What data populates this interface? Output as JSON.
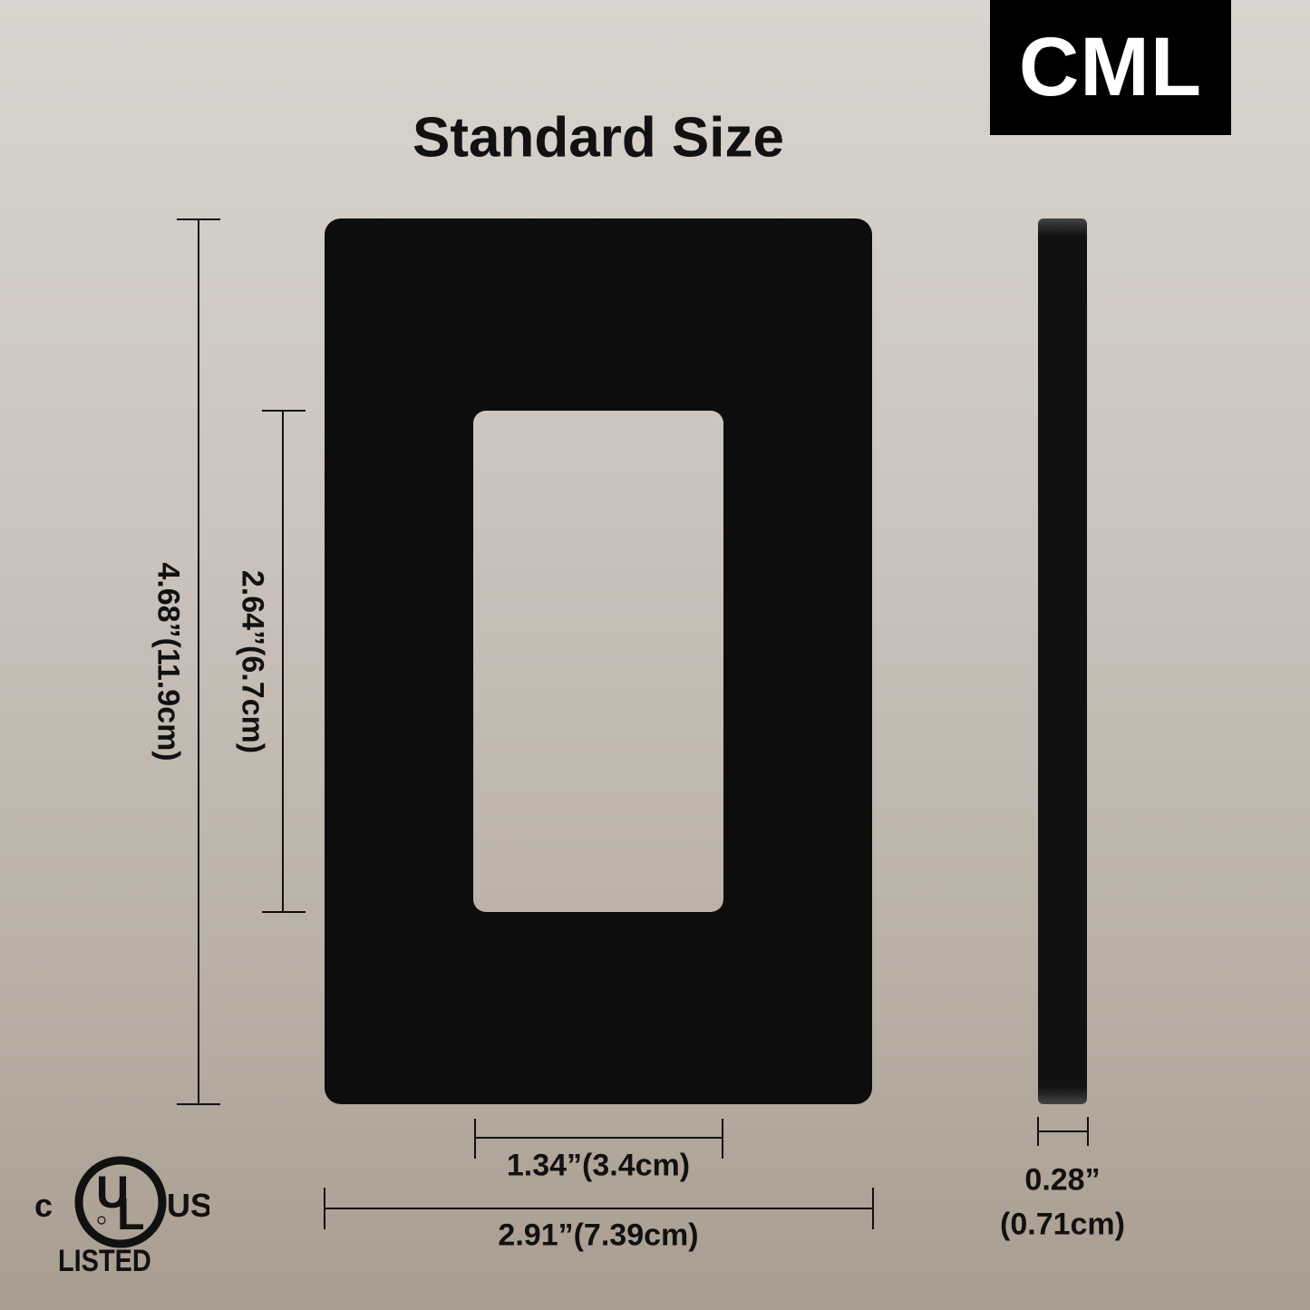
{
  "brand": {
    "logo_text": "CML",
    "box_color": "#000000"
  },
  "title": "Standard Size",
  "plate": {
    "color": "#0d0d0d"
  },
  "dimensions": {
    "overall_height": "4.68”(11.9cm)",
    "opening_height": "2.64”(6.7cm)",
    "opening_width": "1.34”(3.4cm)",
    "overall_width": "2.91”(7.39cm)",
    "thickness_in": "0.28”",
    "thickness_cm": "(0.71cm)"
  },
  "certification": {
    "mark": "cULus",
    "listed_label": "LISTED"
  }
}
